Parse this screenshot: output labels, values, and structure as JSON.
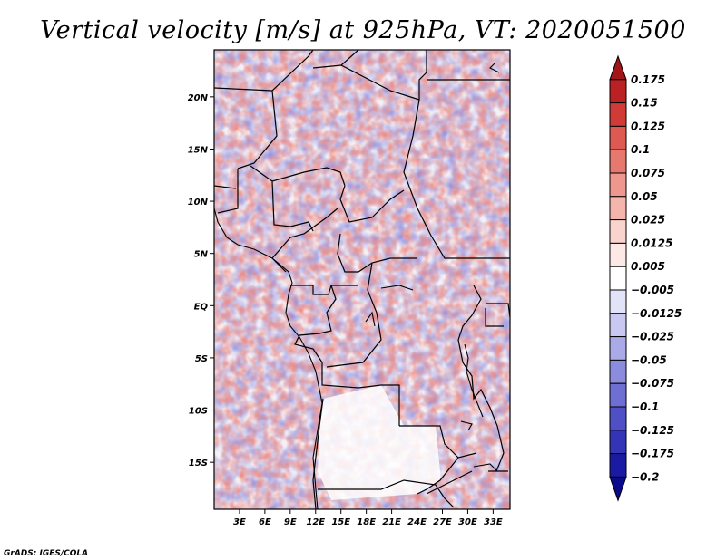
{
  "title": "Vertical velocity [m/s] at 925hPa, VT: 2020051500",
  "credit": "GrADS: IGES/COLA",
  "map": {
    "lat_labels": [
      "20N",
      "15N",
      "10N",
      "5N",
      "EQ",
      "5S",
      "10S",
      "15S"
    ],
    "lat_values": [
      20,
      15,
      10,
      5,
      0,
      -5,
      -10,
      -15
    ],
    "lon_labels": [
      "3E",
      "6E",
      "9E",
      "12E",
      "15E",
      "18E",
      "21E",
      "24E",
      "27E",
      "30E",
      "33E"
    ],
    "lon_values": [
      3,
      6,
      9,
      12,
      15,
      18,
      21,
      24,
      27,
      30,
      33
    ],
    "lat_range": [
      -19.5,
      24.5
    ],
    "lon_range": [
      0,
      35
    ]
  },
  "colorbar": {
    "labels": [
      "0.175",
      "0.15",
      "0.125",
      "0.1",
      "0.075",
      "0.05",
      "0.025",
      "0.0125",
      "0.005",
      "−0.005",
      "−0.0125",
      "−0.025",
      "−0.05",
      "−0.075",
      "−0.1",
      "−0.125",
      "−0.175",
      "−0.2"
    ],
    "colors": [
      "#a11418",
      "#bb2025",
      "#d03b37",
      "#dd5a52",
      "#e6786f",
      "#ee978e",
      "#f4b5ad",
      "#f9d3cd",
      "#fce9e6",
      "#ffffff",
      "#e3e3f7",
      "#c8c8f0",
      "#aaaae8",
      "#8c8cde",
      "#6e6ed3",
      "#5050c6",
      "#3434b6",
      "#1a1aa3",
      "#0a0a8c"
    ]
  }
}
